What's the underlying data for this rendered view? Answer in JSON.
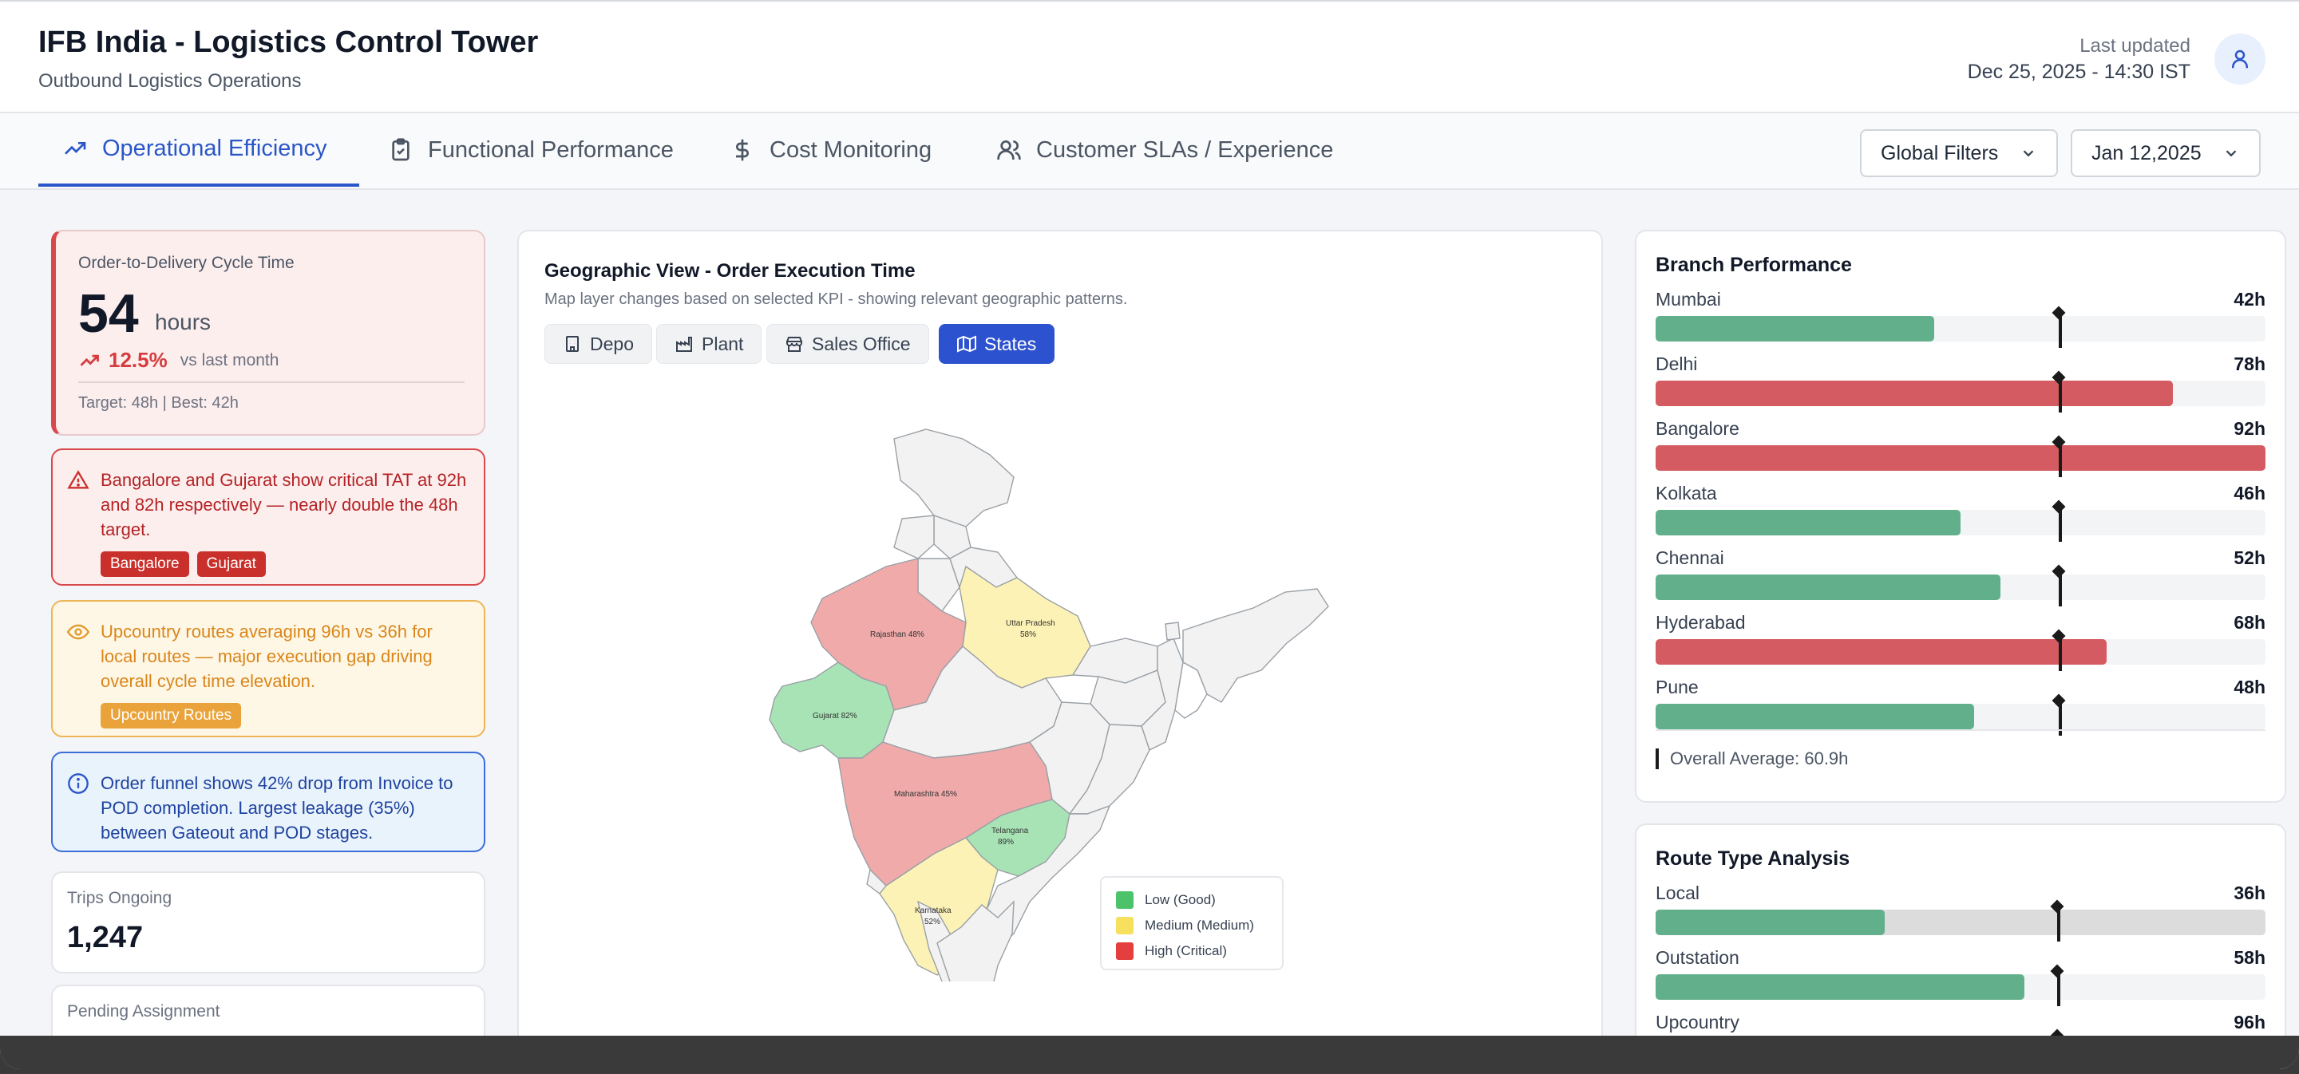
{
  "header": {
    "title": "IFB India - Logistics Control Tower",
    "subtitle": "Outbound Logistics Operations",
    "last_updated_label": "Last updated",
    "last_updated_value": "Dec 25, 2025 - 14:30 IST"
  },
  "tabs": [
    {
      "label": "Operational Efficiency",
      "icon": "trending-up-icon",
      "active": true
    },
    {
      "label": "Functional Performance",
      "icon": "clipboard-check-icon",
      "active": false
    },
    {
      "label": "Cost Monitoring",
      "icon": "dollar-icon",
      "active": false
    },
    {
      "label": "Customer SLAs / Experience",
      "icon": "users-icon",
      "active": false
    }
  ],
  "filters": {
    "global_label": "Global Filters",
    "date_label": "Jan 12,2025"
  },
  "kpi": {
    "label": "Order-to-Delivery Cycle Time",
    "value": "54",
    "unit": "hours",
    "trend_pct": "12.5%",
    "trend_note": "vs last month",
    "footer": "Target: 48h | Best: 42h"
  },
  "alerts": [
    {
      "type": "critical",
      "text": "Bangalore and Gujarat show critical TAT at 92h and 82h respectively — nearly double the 48h target.",
      "badges": [
        "Bangalore",
        "Gujarat"
      ]
    },
    {
      "type": "warning",
      "text": "Upcountry routes averaging 96h vs 36h for local routes — major execution gap driving overall cycle time elevation.",
      "badges": [
        "Upcountry Routes"
      ]
    },
    {
      "type": "info",
      "text": "Order funnel shows 42% drop from Invoice to POD completion. Largest leakage (35%) between Gateout and POD stages.",
      "badges": []
    }
  ],
  "stats": [
    {
      "label": "Trips Ongoing",
      "value": "1,247"
    },
    {
      "label": "Pending Assignment",
      "value": ""
    }
  ],
  "map": {
    "title": "Geographic View - Order Execution Time",
    "subtitle": "Map layer changes based on selected KPI - showing relevant geographic patterns.",
    "layers": [
      {
        "label": "Depo",
        "icon": "building-icon",
        "active": false
      },
      {
        "label": "Plant",
        "icon": "factory-icon",
        "active": false
      },
      {
        "label": "Sales Office",
        "icon": "store-icon",
        "active": false
      },
      {
        "label": "States",
        "icon": "map-icon",
        "active": true
      }
    ],
    "state_labels": {
      "rajasthan": "Rajasthan 48%",
      "uttar_pradesh_1": "Uttar Pradesh",
      "uttar_pradesh_2": "58%",
      "gujarat": "Gujarat 82%",
      "maharashtra": "Maharashtra 45%",
      "telangana_1": "Telangana",
      "telangana_2": "89%",
      "karnataka_1": "Karnataka",
      "karnataka_2": "52%"
    },
    "legend": [
      {
        "label": "Low (Good)",
        "color": "#4cc36b"
      },
      {
        "label": "Medium (Medium)",
        "color": "#f6e05e"
      },
      {
        "label": "High (Critical)",
        "color": "#e53e3e"
      }
    ],
    "colors": {
      "low": "#a8e3b5",
      "medium": "#fdf2b5",
      "high": "#f0aaaa",
      "neutral": "#f2f2f2"
    }
  },
  "branch_performance": {
    "title": "Branch Performance",
    "max": 92,
    "target": 61,
    "items": [
      {
        "name": "Mumbai",
        "value": 42,
        "label": "42h",
        "status": "good"
      },
      {
        "name": "Delhi",
        "value": 78,
        "label": "78h",
        "status": "critical"
      },
      {
        "name": "Bangalore",
        "value": 92,
        "label": "92h",
        "status": "critical"
      },
      {
        "name": "Kolkata",
        "value": 46,
        "label": "46h",
        "status": "good"
      },
      {
        "name": "Chennai",
        "value": 52,
        "label": "52h",
        "status": "good"
      },
      {
        "name": "Hyderabad",
        "value": 68,
        "label": "68h",
        "status": "critical"
      },
      {
        "name": "Pune",
        "value": 48,
        "label": "48h",
        "status": "good"
      }
    ],
    "overall": "Overall Average: 60.9h"
  },
  "route_analysis": {
    "title": "Route Type Analysis",
    "max": 96,
    "target": 63.5,
    "items": [
      {
        "name": "Local",
        "value": 36,
        "label": "36h",
        "status": "good"
      },
      {
        "name": "Outstation",
        "value": 58,
        "label": "58h",
        "status": "good"
      },
      {
        "name": "Upcountry",
        "value": 96,
        "label": "96h",
        "status": "critical"
      }
    ]
  },
  "status_colors": {
    "good": "#62b08b",
    "critical": "#d55b62"
  }
}
